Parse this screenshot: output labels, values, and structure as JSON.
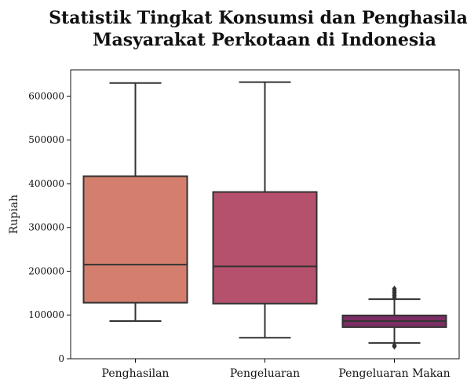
{
  "chart_data": {
    "type": "box",
    "title_lines": [
      "Statistik Tingkat Konsumsi dan Penghasilan",
      "Masyarakat Perkotaan di Indonesia"
    ],
    "xlabel": "",
    "ylabel": "Rupiah",
    "ylim": [
      0,
      660000
    ],
    "yticks": [
      0,
      100000,
      200000,
      300000,
      400000,
      500000,
      600000
    ],
    "grid": false,
    "categories": [
      "Penghasilan",
      "Pengeluaran",
      "Pengeluaran Makan"
    ],
    "colors": [
      "#d47f6e",
      "#b5516d",
      "#7a2e63"
    ],
    "boxes": [
      {
        "whisker_low": 86000,
        "q1": 128000,
        "median": 215000,
        "q3": 417000,
        "whisker_high": 630000,
        "outliers": []
      },
      {
        "whisker_low": 48000,
        "q1": 126000,
        "median": 211000,
        "q3": 381000,
        "whisker_high": 632000,
        "outliers": []
      },
      {
        "whisker_low": 36000,
        "q1": 72000,
        "median": 86000,
        "q3": 99000,
        "whisker_high": 136000,
        "outliers": [
          28000,
          31000,
          140000,
          144000,
          148000,
          152000,
          156000,
          160000
        ]
      }
    ]
  }
}
